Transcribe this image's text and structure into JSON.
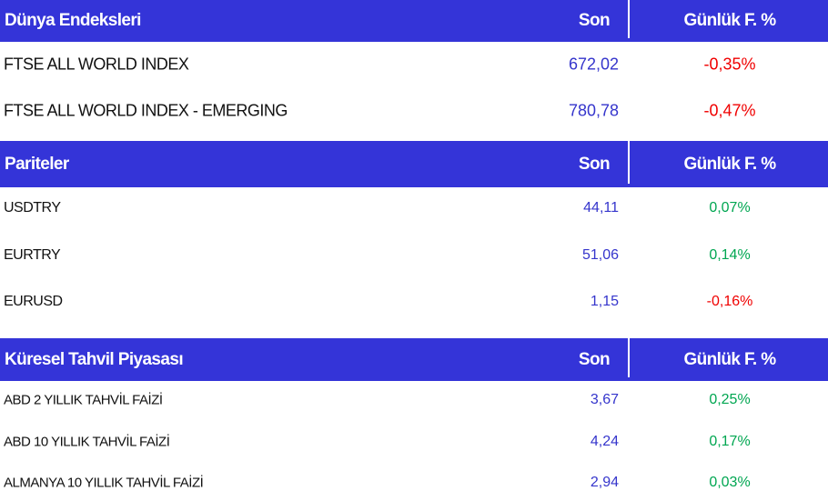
{
  "colors": {
    "header": "#3434d8",
    "value": "#3535cc",
    "negative": "#f00000",
    "positive": "#00a651"
  },
  "sections": [
    {
      "title": "Dünya Endeksleri",
      "col_last": "Son",
      "col_change": "Günlük F. %",
      "rows": [
        {
          "name": "FTSE ALL WORLD INDEX",
          "last": "672,02",
          "change": "-0,35%"
        },
        {
          "name": "FTSE ALL WORLD INDEX - EMERGING",
          "last": "780,78",
          "change": "-0,47%"
        }
      ]
    },
    {
      "title": "Pariteler",
      "col_last": "Son",
      "col_change": "Günlük F. %",
      "rows": [
        {
          "name": "USDTRY",
          "last": "44,11",
          "change": "0,07%"
        },
        {
          "name": "EURTRY",
          "last": "51,06",
          "change": "0,14%"
        },
        {
          "name": "EURUSD",
          "last": "1,15",
          "change": "-0,16%"
        }
      ]
    },
    {
      "title": "Küresel Tahvil Piyasası",
      "col_last": "Son",
      "col_change": "Günlük F. %",
      "rows": [
        {
          "name": "ABD 2 YILLIK TAHVİL FAİZİ",
          "last": "3,67",
          "change": "0,25%"
        },
        {
          "name": "ABD 10 YILLIK TAHVİL FAİZİ",
          "last": "4,24",
          "change": "0,17%"
        },
        {
          "name": "ALMANYA 10 YILLIK TAHVİL FAİZİ",
          "last": "2,94",
          "change": "0,03%"
        }
      ]
    }
  ]
}
